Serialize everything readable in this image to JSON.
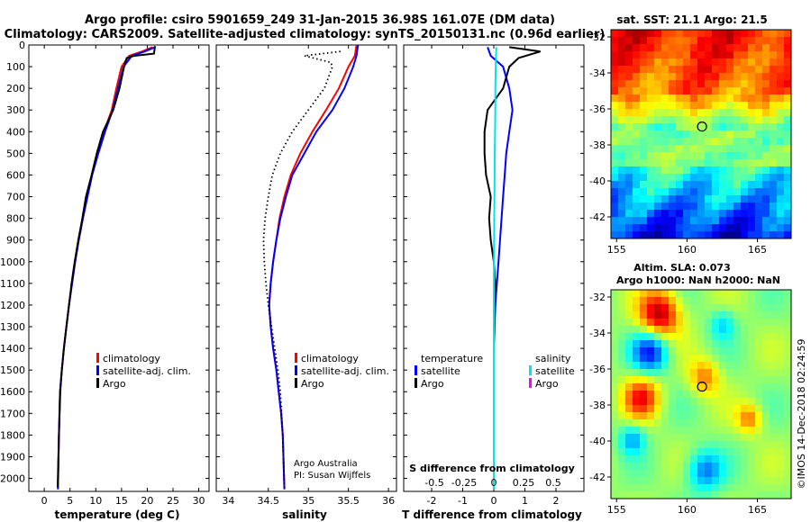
{
  "header": {
    "line1": "Argo profile: csiro 5901659_249 31-Jan-2015 36.98S 161.07E (DM data)",
    "line2": "Climatology: CARS2009. Satellite-adjusted climatology: synTS_20150131.nc (0.96d earlier)"
  },
  "colors": {
    "climatology": "#ff0000",
    "satellite": "#0000ff",
    "argo": "#000000",
    "sat_salinity": "#00e5e5",
    "argo_salinity": "#ff00ff"
  },
  "depth_ticks": [
    0,
    100,
    200,
    300,
    400,
    500,
    600,
    700,
    800,
    900,
    1000,
    1100,
    1200,
    1300,
    1400,
    1500,
    1600,
    1700,
    1800,
    1900,
    2000
  ],
  "panels": {
    "temperature": {
      "xlabel": "temperature (deg C)",
      "xticks": [
        0,
        5,
        10,
        15,
        20,
        25,
        30
      ],
      "legend": [
        "climatology",
        "satellite-adj. clim.",
        "Argo"
      ]
    },
    "salinity": {
      "xlabel": "salinity",
      "xticks": [
        34,
        34.5,
        35,
        35.5,
        36
      ],
      "legend": [
        "climatology",
        "satellite-adj. clim.",
        "Argo"
      ],
      "credit1": "Argo Australia",
      "credit2": "PI: Susan Wijffels"
    },
    "difference": {
      "xlabel": "T difference from climatology",
      "xticks": [
        -2,
        -1,
        0,
        1,
        2
      ],
      "s_label": "S difference from climatology",
      "s_ticks": [
        "-0.5",
        "-0.25",
        "0",
        "0.25",
        "0.5"
      ],
      "legend_t_title": "temperature",
      "legend_t": [
        "satellite",
        "Argo"
      ],
      "legend_s_title": "salinity",
      "legend_s": [
        "satellite",
        "Argo"
      ]
    }
  },
  "maps": {
    "sst_title": "sat. SST: 21.1 Argo: 21.5",
    "sla_title1": "Altim. SLA: 0.073",
    "sla_title2": "Argo h1000: NaN h2000: NaN",
    "lat_ticks": [
      -32,
      -34,
      -36,
      -38,
      -40,
      -42
    ],
    "lon_ticks": [
      155,
      160,
      165
    ],
    "float_lon": 161.07,
    "float_lat": -36.98
  },
  "footer": "©IMOS 14-Dec-2018 02:24:59",
  "chart_data": [
    {
      "type": "line",
      "title": "",
      "xlabel": "temperature (deg C)",
      "ylabel": "",
      "xlim": [
        -3,
        32
      ],
      "ylim": [
        2060,
        0
      ],
      "series": [
        {
          "name": "climatology",
          "x": [
            21,
            19,
            16.5,
            15,
            14,
            13.1,
            11.6,
            10.4,
            9.2,
            8.3,
            7.5,
            6.7,
            6,
            5.4,
            4.8,
            4.3,
            3.8,
            3.4,
            3.05,
            2.85,
            2.65
          ],
          "y": [
            10,
            30,
            50,
            100,
            200,
            300,
            400,
            500,
            600,
            700,
            800,
            900,
            1000,
            1100,
            1200,
            1300,
            1400,
            1500,
            1600,
            1800,
            2050
          ]
        },
        {
          "name": "satellite-adj. clim.",
          "x": [
            21.5,
            19.5,
            17,
            15.4,
            14.3,
            13.3,
            11.8,
            10.5,
            9.3,
            8.4,
            7.5,
            6.7,
            6,
            5.4,
            4.8,
            4.3,
            3.8,
            3.4,
            3.05,
            2.85,
            2.65
          ],
          "y": [
            10,
            30,
            50,
            100,
            200,
            300,
            400,
            500,
            600,
            700,
            800,
            900,
            1000,
            1100,
            1200,
            1300,
            1400,
            1500,
            1600,
            1800,
            2050
          ]
        },
        {
          "name": "Argo",
          "x": [
            21.5,
            21.3,
            17.5,
            16,
            15.5,
            14.6,
            13.4,
            11.4,
            10.2,
            9.2,
            8.1,
            7.4,
            6.6,
            5.9,
            5.3,
            4.8,
            4.3,
            3.8,
            3.4,
            3.1,
            2.85,
            2.6
          ],
          "y": [
            5,
            40,
            50,
            60,
            100,
            200,
            300,
            400,
            500,
            600,
            700,
            800,
            900,
            1000,
            1100,
            1200,
            1300,
            1400,
            1500,
            1600,
            1800,
            2040
          ]
        }
      ]
    },
    {
      "type": "line",
      "title": "",
      "xlabel": "salinity",
      "ylabel": "",
      "xlim": [
        33.85,
        36.1
      ],
      "ylim": [
        2060,
        0
      ],
      "series": [
        {
          "name": "climatology",
          "x": [
            35.6,
            35.58,
            35.5,
            35.38,
            35.22,
            35.05,
            34.9,
            34.78,
            34.7,
            34.64,
            34.6,
            34.56,
            34.53,
            34.51,
            34.53,
            34.56,
            34.6,
            34.63,
            34.66,
            34.68,
            34.7
          ],
          "y": [
            0,
            50,
            100,
            200,
            300,
            400,
            500,
            600,
            700,
            800,
            900,
            1000,
            1100,
            1200,
            1300,
            1400,
            1500,
            1600,
            1700,
            1800,
            2050
          ]
        },
        {
          "name": "satellite-adj. clim.",
          "x": [
            35.62,
            35.6,
            35.56,
            35.45,
            35.3,
            35.1,
            34.95,
            34.8,
            34.72,
            34.65,
            34.6,
            34.56,
            34.53,
            34.51,
            34.53,
            34.56,
            34.6,
            34.63,
            34.66,
            34.68,
            34.7
          ],
          "y": [
            0,
            50,
            100,
            200,
            300,
            400,
            500,
            600,
            700,
            800,
            900,
            1000,
            1100,
            1200,
            1300,
            1400,
            1500,
            1600,
            1700,
            1800,
            2050
          ]
        },
        {
          "name": "Argo",
          "x": [
            35.4,
            34.95,
            35.28,
            35.3,
            35.2,
            35,
            34.8,
            34.65,
            34.55,
            34.5,
            34.46,
            34.44,
            34.45,
            34.47,
            34.5,
            34.54,
            34.58,
            34.62,
            34.65,
            34.68,
            34.7
          ],
          "y": [
            30,
            50,
            80,
            100,
            200,
            300,
            400,
            500,
            600,
            700,
            800,
            900,
            1000,
            1100,
            1200,
            1300,
            1400,
            1500,
            1600,
            1800,
            2050
          ]
        }
      ]
    },
    {
      "type": "line",
      "title": "",
      "xlabel": "T difference from climatology",
      "ylabel": "",
      "xlim": [
        -2.9,
        2.9
      ],
      "ylim": [
        2060,
        0
      ],
      "series": [
        {
          "name": "temperature satellite",
          "x": [
            -0.2,
            -0.1,
            0.3,
            0.5,
            0.6,
            0.5,
            0.4,
            0.35,
            0.3,
            0.25,
            0.2,
            0.15,
            0.1,
            0.05,
            0,
            0,
            0
          ],
          "y": [
            10,
            50,
            100,
            200,
            300,
            400,
            500,
            600,
            700,
            800,
            900,
            1000,
            1100,
            1200,
            1400,
            1700,
            2050
          ]
        },
        {
          "name": "temperature Argo",
          "x": [
            0.5,
            1.5,
            0.8,
            0.5,
            0.3,
            -0.2,
            -0.3,
            -0.3,
            -0.25,
            -0.1,
            -0.15,
            -0.1,
            0,
            0.05,
            0,
            0,
            0
          ],
          "y": [
            10,
            30,
            60,
            100,
            200,
            300,
            400,
            500,
            600,
            700,
            800,
            900,
            1000,
            1100,
            1300,
            1700,
            2050
          ]
        },
        {
          "name": "salinity satellite",
          "x": [
            0.08,
            0.06,
            0.05,
            0.05,
            0.04,
            0.03,
            0.025,
            0.02,
            0.015,
            0.01,
            0,
            0
          ],
          "y": [
            10,
            100,
            200,
            300,
            400,
            500,
            600,
            700,
            800,
            900,
            1100,
            2050
          ]
        }
      ]
    },
    {
      "type": "heatmap",
      "title": "sat. SST: 21.1 Argo: 21.5",
      "xlim": [
        154.6,
        167.4
      ],
      "ylim": [
        -43.2,
        -31.6
      ]
    },
    {
      "type": "heatmap",
      "title": "Altim. SLA: 0.073",
      "xlim": [
        154.6,
        167.4
      ],
      "ylim": [
        -43.2,
        -31.6
      ]
    }
  ]
}
